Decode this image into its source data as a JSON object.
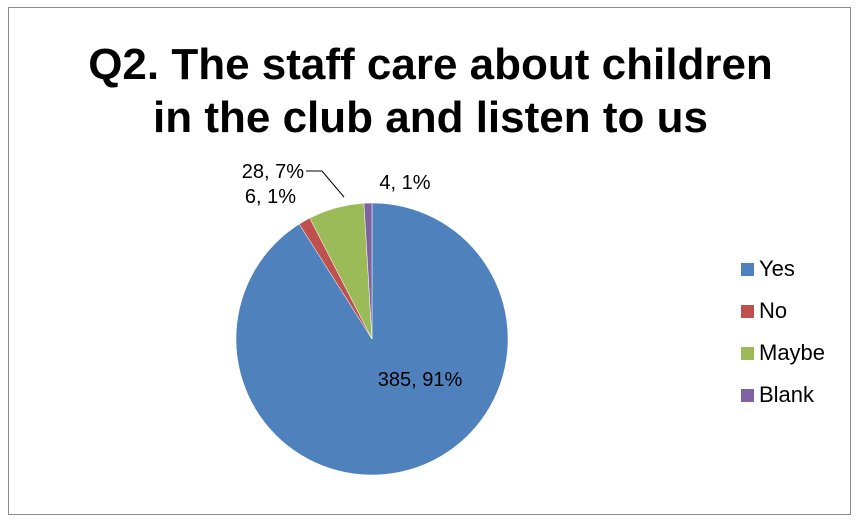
{
  "chart_data": {
    "type": "pie",
    "title": "Q2. The staff care about children in the club and listen to us",
    "title_lines": [
      "Q2. The staff care about children",
      "in the club and listen to us"
    ],
    "categories": [
      "Yes",
      "No",
      "Maybe",
      "Blank"
    ],
    "values": [
      385,
      6,
      28,
      4
    ],
    "percent_labels": [
      "91%",
      "1%",
      "7%",
      "1%"
    ],
    "data_labels": [
      "385, 91%",
      "6, 1%",
      "28, 7%",
      "4, 1%"
    ],
    "colors": [
      "#4f81bd",
      "#c0504d",
      "#9bbb59",
      "#8064a2"
    ],
    "legend_position": "right"
  }
}
